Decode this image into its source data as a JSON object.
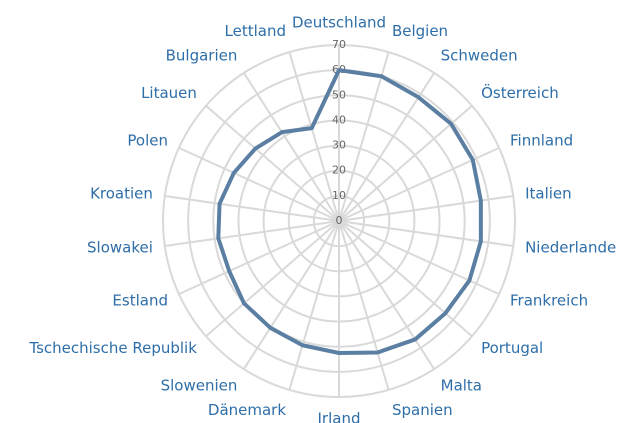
{
  "chart_data": {
    "type": "radar",
    "categories": [
      "Deutschland",
      "Belgien",
      "Schweden",
      "Österreich",
      "Finnland",
      "Italien",
      "Niederlande",
      "Frankreich",
      "Portugal",
      "Malta",
      "Spanien",
      "Irland",
      "Dänemark",
      "Slowenien",
      "Tschechische Republik",
      "Estland",
      "Slowakei",
      "Kroatien",
      "Polen",
      "Litauen",
      "Bulgarien",
      "Lettland"
    ],
    "values": [
      60,
      60,
      58.5,
      59,
      58.5,
      57,
      57,
      57,
      56,
      56,
      54.5,
      52.5,
      51.5,
      50.5,
      50,
      48,
      48.5,
      48,
      46,
      44,
      42,
      38.5
    ],
    "color": "#5b7fa3",
    "ylim": [
      0,
      70
    ],
    "yticks": [
      0,
      10,
      20,
      30,
      40,
      50,
      60,
      70
    ],
    "grid": true
  }
}
